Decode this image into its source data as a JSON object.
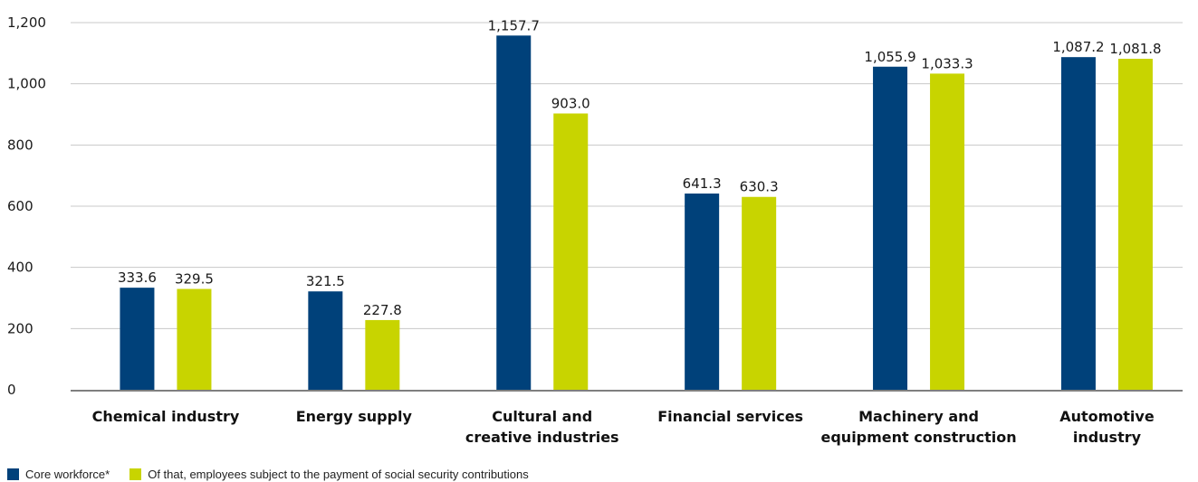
{
  "chart_data": {
    "type": "bar",
    "categories": [
      [
        "Chemical industry"
      ],
      [
        "Energy supply"
      ],
      [
        "Cultural and",
        "creative industries"
      ],
      [
        "Financial services"
      ],
      [
        "Machinery and",
        "equipment construction"
      ],
      [
        "Automotive",
        "industry"
      ]
    ],
    "series": [
      {
        "name": "Core workforce*",
        "color": "#00417a",
        "values": [
          333.6,
          321.5,
          1157.7,
          641.3,
          1055.9,
          1087.2
        ],
        "labels": [
          "333.6",
          "321.5",
          "1,157.7",
          "641.3",
          "1,055.9",
          "1,087.2"
        ]
      },
      {
        "name": "Of that, employees subject to the payment of social security contributions",
        "color": "#c8d400",
        "values": [
          329.5,
          227.8,
          903.0,
          630.3,
          1033.3,
          1081.8
        ],
        "labels": [
          "329.5",
          "227.8",
          "903.0",
          "630.3",
          "1,033.3",
          "1,081.8"
        ]
      }
    ],
    "y_ticks": [
      0,
      200,
      400,
      600,
      800,
      1000,
      1200
    ],
    "y_tick_labels": [
      "0",
      "200",
      "400",
      "600",
      "800",
      "1,000",
      "1,200"
    ],
    "ylim": [
      0,
      1200
    ],
    "grid": true,
    "legend_position": "bottom-left",
    "colors": {
      "grid": "#c8c8c8",
      "axis": "#7f7f7f"
    }
  }
}
